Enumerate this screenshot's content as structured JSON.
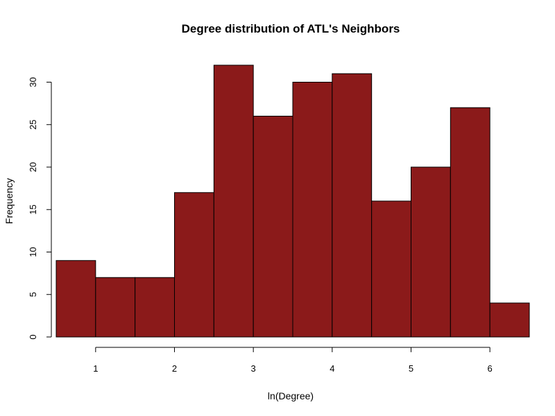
{
  "chart_data": {
    "type": "bar",
    "subtype": "histogram",
    "title": "Degree distribution of ATL's Neighbors",
    "xlabel": "ln(Degree)",
    "ylabel": "Frequency",
    "bins": [
      {
        "start": 0.5,
        "end": 1.0,
        "value": 9
      },
      {
        "start": 1.0,
        "end": 1.5,
        "value": 7
      },
      {
        "start": 1.5,
        "end": 2.0,
        "value": 7
      },
      {
        "start": 2.0,
        "end": 2.5,
        "value": 17
      },
      {
        "start": 2.5,
        "end": 3.0,
        "value": 32
      },
      {
        "start": 3.0,
        "end": 3.5,
        "value": 26
      },
      {
        "start": 3.5,
        "end": 4.0,
        "value": 30
      },
      {
        "start": 4.0,
        "end": 4.5,
        "value": 31
      },
      {
        "start": 4.5,
        "end": 5.0,
        "value": 16
      },
      {
        "start": 5.0,
        "end": 5.5,
        "value": 20
      },
      {
        "start": 5.5,
        "end": 6.0,
        "value": 27
      },
      {
        "start": 6.0,
        "end": 6.5,
        "value": 4
      }
    ],
    "xlim": [
      0.5,
      6.5
    ],
    "ylim": [
      0,
      33
    ],
    "xticks": [
      1,
      2,
      3,
      4,
      5,
      6
    ],
    "xtick_labels": [
      "1",
      "2",
      "3",
      "4",
      "5",
      "6"
    ],
    "yticks": [
      0,
      5,
      10,
      15,
      20,
      25,
      30
    ],
    "ytick_labels": [
      "0",
      "5",
      "10",
      "15",
      "20",
      "25",
      "30"
    ],
    "grid": false,
    "legend": "none",
    "bar_color": "#8b1a1a",
    "edge_color": "#000000"
  }
}
